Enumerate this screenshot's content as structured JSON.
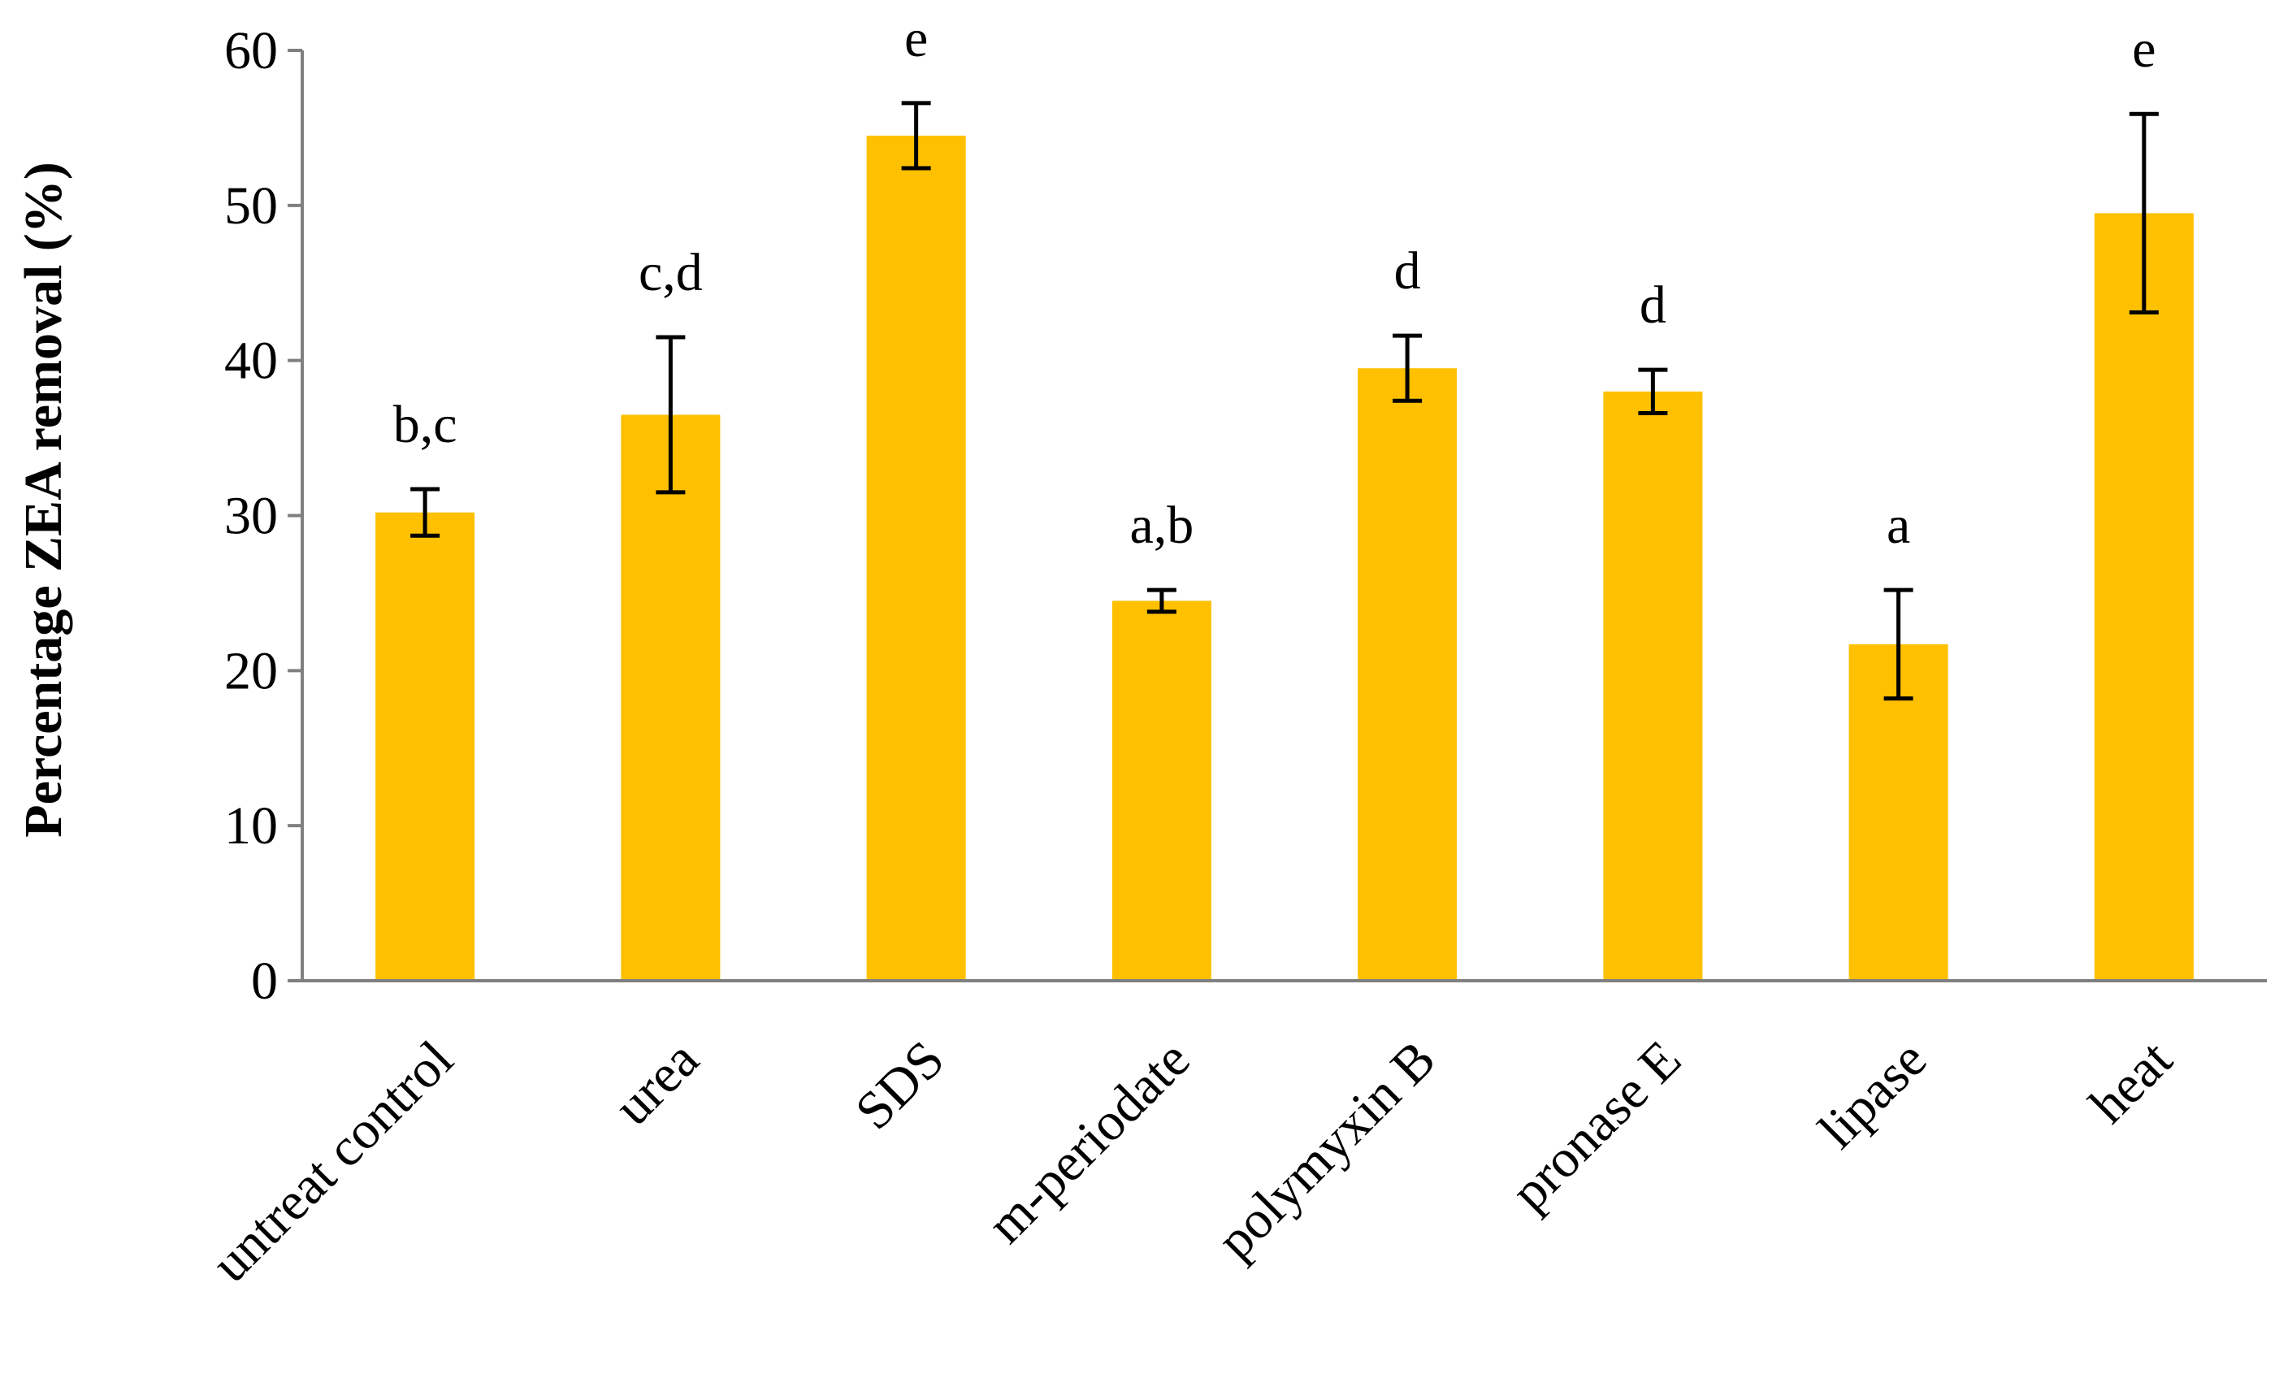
{
  "chart_data": {
    "type": "bar",
    "title": "",
    "xlabel": "",
    "ylabel": "Percentage  ZEA removal (%)",
    "ylim": [
      0,
      60
    ],
    "yticks": [
      0,
      10,
      20,
      30,
      40,
      50,
      60
    ],
    "grid": false,
    "legend": "none",
    "bar_color": "#FFC000",
    "axis_color": "#808080",
    "categories": [
      "untreat control",
      "urea",
      "SDS",
      "m-periodate",
      "polymyxin B",
      "pronase E",
      "lipase",
      "heat"
    ],
    "values": [
      30.2,
      36.5,
      54.5,
      24.5,
      39.5,
      38.0,
      21.7,
      49.5
    ],
    "errors": [
      1.5,
      5.0,
      2.1,
      0.7,
      2.1,
      1.4,
      3.5,
      6.4
    ],
    "significance": [
      "b,c",
      "c,d",
      "e",
      "a,b",
      "d",
      "d",
      "a",
      "e"
    ]
  }
}
